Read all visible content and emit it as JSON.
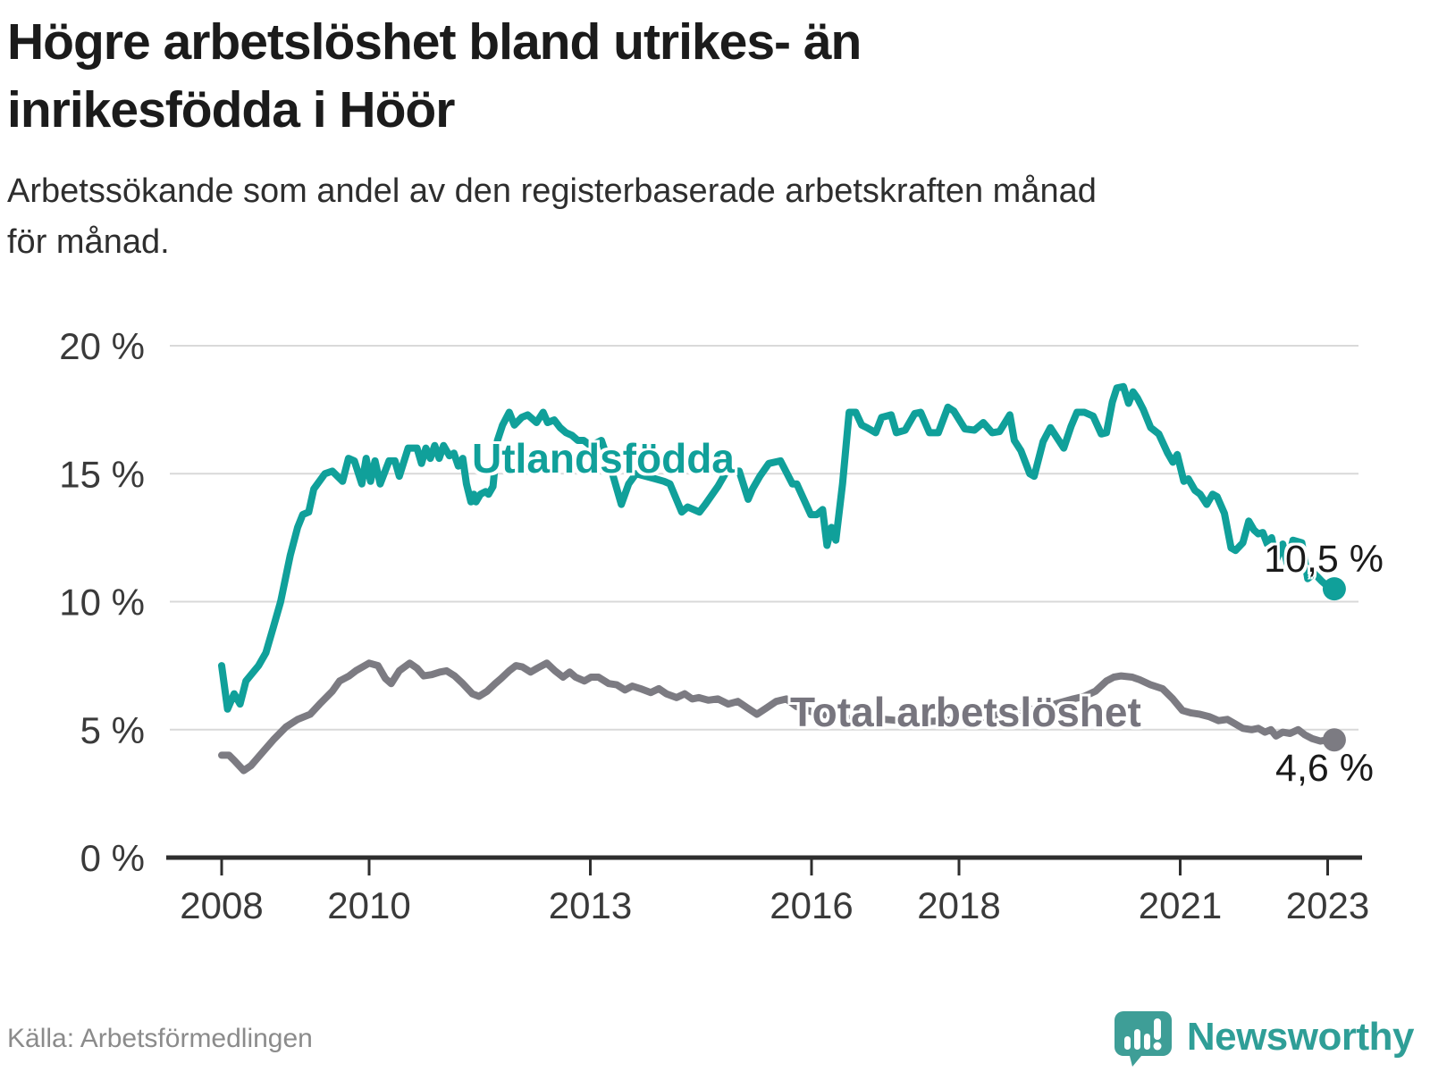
{
  "title": {
    "lines": [
      "Högre arbetslöshet bland utrikes- än",
      "inrikesfödda i Höör"
    ]
  },
  "subtitle": {
    "lines": [
      "Arbetssökande som andel av den registerbaserade arbetskraften månad",
      "för månad."
    ]
  },
  "source": "Källa: Arbetsförmedlingen",
  "branding": {
    "name": "Newsworthy",
    "logo_icon": "bar-chart-speech-bubble-icon",
    "logo_color": "#3e9e97"
  },
  "colors": {
    "foreign_line": "#10a09a",
    "total_line": "#7c7b82",
    "grid": "#d9d9d9",
    "axis": "#2e2e2e",
    "end_label_text": "#1a1a1a"
  },
  "chart_data": {
    "type": "line",
    "title": "Högre arbetslöshet bland utrikes- än inrikesfödda i Höör",
    "xlabel": "",
    "ylabel": "Arbetssökande som andel av den registerbaserade arbetskraften",
    "ylim": [
      0,
      20
    ],
    "xlim": [
      2007.3,
      2023.42
    ],
    "grid": "horizontal",
    "legend_position": "inline-labels",
    "y_ticks": [
      {
        "value": 0,
        "label": "0 %"
      },
      {
        "value": 5,
        "label": "5 %"
      },
      {
        "value": 10,
        "label": "10 %"
      },
      {
        "value": 15,
        "label": "15 %"
      },
      {
        "value": 20,
        "label": "20 %"
      }
    ],
    "x_ticks": [
      {
        "year": 2008,
        "label": "2008"
      },
      {
        "year": 2010,
        "label": "2010"
      },
      {
        "year": 2013,
        "label": "2013"
      },
      {
        "year": 2016,
        "label": "2016"
      },
      {
        "year": 2018,
        "label": "2018"
      },
      {
        "year": 2021,
        "label": "2021"
      },
      {
        "year": 2023,
        "label": "2023"
      }
    ],
    "series": [
      {
        "id": "utlandsfodda",
        "name": "Utlandsfödda",
        "color": "#10a09a",
        "end_value": 10.5,
        "end_label": "10,5 %",
        "points": [
          [
            2008.0,
            7.5
          ],
          [
            2008.08,
            5.8
          ],
          [
            2008.17,
            6.4
          ],
          [
            2008.25,
            6.0
          ],
          [
            2008.33,
            6.9
          ],
          [
            2008.5,
            7.5
          ],
          [
            2008.6,
            8.0
          ],
          [
            2008.7,
            9.0
          ],
          [
            2008.8,
            10.0
          ],
          [
            2008.93,
            11.8
          ],
          [
            2009.03,
            12.9
          ],
          [
            2009.1,
            13.4
          ],
          [
            2009.18,
            13.5
          ],
          [
            2009.25,
            14.4
          ],
          [
            2009.4,
            15.0
          ],
          [
            2009.5,
            15.1
          ],
          [
            2009.64,
            14.7
          ],
          [
            2009.72,
            15.6
          ],
          [
            2009.8,
            15.5
          ],
          [
            2009.9,
            14.6
          ],
          [
            2009.96,
            15.6
          ],
          [
            2010.02,
            14.7
          ],
          [
            2010.08,
            15.5
          ],
          [
            2010.15,
            14.6
          ],
          [
            2010.27,
            15.5
          ],
          [
            2010.35,
            15.5
          ],
          [
            2010.41,
            14.9
          ],
          [
            2010.53,
            16.0
          ],
          [
            2010.65,
            16.0
          ],
          [
            2010.71,
            15.4
          ],
          [
            2010.77,
            16.0
          ],
          [
            2010.83,
            15.6
          ],
          [
            2010.89,
            16.1
          ],
          [
            2010.95,
            15.6
          ],
          [
            2011.01,
            16.1
          ],
          [
            2011.09,
            15.7
          ],
          [
            2011.15,
            15.8
          ],
          [
            2011.21,
            15.3
          ],
          [
            2011.27,
            15.6
          ],
          [
            2011.32,
            14.6
          ],
          [
            2011.38,
            13.9
          ],
          [
            2011.42,
            14.2
          ],
          [
            2011.45,
            13.9
          ],
          [
            2011.51,
            14.2
          ],
          [
            2011.58,
            14.3
          ],
          [
            2011.62,
            14.2
          ],
          [
            2011.68,
            14.5
          ],
          [
            2011.74,
            16.3
          ],
          [
            2011.81,
            16.9
          ],
          [
            2011.9,
            17.4
          ],
          [
            2011.97,
            16.9
          ],
          [
            2012.07,
            17.2
          ],
          [
            2012.15,
            17.3
          ],
          [
            2012.27,
            17.0
          ],
          [
            2012.36,
            17.4
          ],
          [
            2012.42,
            17.0
          ],
          [
            2012.51,
            17.1
          ],
          [
            2012.59,
            16.8
          ],
          [
            2012.67,
            16.6
          ],
          [
            2012.75,
            16.5
          ],
          [
            2012.83,
            16.3
          ],
          [
            2012.91,
            16.3
          ],
          [
            2013.0,
            16.1
          ],
          [
            2013.08,
            16.2
          ],
          [
            2013.15,
            16.3
          ],
          [
            2013.28,
            15.2
          ],
          [
            2013.42,
            13.8
          ],
          [
            2013.52,
            14.6
          ],
          [
            2013.62,
            15.0
          ],
          [
            2013.75,
            14.9
          ],
          [
            2013.88,
            14.8
          ],
          [
            2014.0,
            14.7
          ],
          [
            2014.08,
            14.6
          ],
          [
            2014.24,
            13.5
          ],
          [
            2014.32,
            13.7
          ],
          [
            2014.48,
            13.5
          ],
          [
            2014.56,
            13.8
          ],
          [
            2014.73,
            14.5
          ],
          [
            2014.85,
            15.1
          ],
          [
            2015.02,
            15.1
          ],
          [
            2015.14,
            14.0
          ],
          [
            2015.2,
            14.4
          ],
          [
            2015.3,
            14.9
          ],
          [
            2015.42,
            15.4
          ],
          [
            2015.58,
            15.5
          ],
          [
            2015.74,
            14.6
          ],
          [
            2015.8,
            14.6
          ],
          [
            2015.99,
            13.4
          ],
          [
            2016.07,
            13.4
          ],
          [
            2016.15,
            13.6
          ],
          [
            2016.21,
            12.2
          ],
          [
            2016.27,
            12.9
          ],
          [
            2016.33,
            12.4
          ],
          [
            2016.42,
            14.6
          ],
          [
            2016.51,
            17.4
          ],
          [
            2016.6,
            17.4
          ],
          [
            2016.68,
            16.9
          ],
          [
            2016.75,
            16.8
          ],
          [
            2016.87,
            16.6
          ],
          [
            2016.95,
            17.2
          ],
          [
            2017.08,
            17.3
          ],
          [
            2017.15,
            16.6
          ],
          [
            2017.27,
            16.7
          ],
          [
            2017.4,
            17.35
          ],
          [
            2017.48,
            17.4
          ],
          [
            2017.6,
            16.6
          ],
          [
            2017.72,
            16.6
          ],
          [
            2017.85,
            17.6
          ],
          [
            2017.93,
            17.45
          ],
          [
            2018.08,
            16.75
          ],
          [
            2018.21,
            16.7
          ],
          [
            2018.33,
            17.0
          ],
          [
            2018.45,
            16.6
          ],
          [
            2018.55,
            16.65
          ],
          [
            2018.69,
            17.3
          ],
          [
            2018.75,
            16.3
          ],
          [
            2018.84,
            15.9
          ],
          [
            2018.96,
            15.0
          ],
          [
            2019.02,
            14.9
          ],
          [
            2019.14,
            16.25
          ],
          [
            2019.24,
            16.8
          ],
          [
            2019.33,
            16.4
          ],
          [
            2019.42,
            16.0
          ],
          [
            2019.52,
            16.85
          ],
          [
            2019.6,
            17.4
          ],
          [
            2019.7,
            17.4
          ],
          [
            2019.82,
            17.25
          ],
          [
            2019.93,
            16.55
          ],
          [
            2020.0,
            16.6
          ],
          [
            2020.08,
            17.8
          ],
          [
            2020.14,
            18.35
          ],
          [
            2020.23,
            18.4
          ],
          [
            2020.3,
            17.75
          ],
          [
            2020.36,
            18.2
          ],
          [
            2020.42,
            17.95
          ],
          [
            2020.5,
            17.5
          ],
          [
            2020.6,
            16.8
          ],
          [
            2020.71,
            16.55
          ],
          [
            2020.83,
            15.8
          ],
          [
            2020.9,
            15.45
          ],
          [
            2020.96,
            15.75
          ],
          [
            2021.05,
            14.7
          ],
          [
            2021.11,
            14.8
          ],
          [
            2021.2,
            14.35
          ],
          [
            2021.27,
            14.2
          ],
          [
            2021.36,
            13.8
          ],
          [
            2021.44,
            14.2
          ],
          [
            2021.5,
            14.1
          ],
          [
            2021.6,
            13.45
          ],
          [
            2021.69,
            12.1
          ],
          [
            2021.75,
            12.0
          ],
          [
            2021.85,
            12.3
          ],
          [
            2021.93,
            13.15
          ],
          [
            2022.0,
            12.8
          ],
          [
            2022.06,
            12.65
          ],
          [
            2022.12,
            12.7
          ],
          [
            2022.18,
            12.25
          ],
          [
            2022.24,
            12.5
          ],
          [
            2022.3,
            11.6
          ],
          [
            2022.39,
            12.25
          ],
          [
            2022.45,
            11.5
          ],
          [
            2022.53,
            12.4
          ],
          [
            2022.65,
            12.3
          ],
          [
            2022.73,
            10.9
          ],
          [
            2022.82,
            11.1
          ],
          [
            2022.92,
            10.8
          ],
          [
            2023.0,
            10.6
          ],
          [
            2023.09,
            10.5
          ]
        ]
      },
      {
        "id": "total",
        "name": "Total arbetslöshet",
        "color": "#7c7b82",
        "end_value": 4.6,
        "end_label": "4,6 %",
        "points": [
          [
            2008.0,
            4.0
          ],
          [
            2008.1,
            4.0
          ],
          [
            2008.17,
            3.8
          ],
          [
            2008.3,
            3.4
          ],
          [
            2008.4,
            3.6
          ],
          [
            2008.55,
            4.1
          ],
          [
            2008.7,
            4.6
          ],
          [
            2008.87,
            5.1
          ],
          [
            2009.03,
            5.4
          ],
          [
            2009.2,
            5.6
          ],
          [
            2009.33,
            6.0
          ],
          [
            2009.5,
            6.5
          ],
          [
            2009.6,
            6.9
          ],
          [
            2009.73,
            7.1
          ],
          [
            2009.82,
            7.3
          ],
          [
            2010.0,
            7.6
          ],
          [
            2010.12,
            7.5
          ],
          [
            2010.22,
            7.0
          ],
          [
            2010.3,
            6.8
          ],
          [
            2010.41,
            7.3
          ],
          [
            2010.55,
            7.6
          ],
          [
            2010.65,
            7.4
          ],
          [
            2010.74,
            7.1
          ],
          [
            2010.85,
            7.15
          ],
          [
            2010.96,
            7.25
          ],
          [
            2011.05,
            7.3
          ],
          [
            2011.16,
            7.1
          ],
          [
            2011.27,
            6.8
          ],
          [
            2011.4,
            6.4
          ],
          [
            2011.49,
            6.3
          ],
          [
            2011.6,
            6.5
          ],
          [
            2011.71,
            6.8
          ],
          [
            2011.79,
            7.0
          ],
          [
            2011.9,
            7.3
          ],
          [
            2011.99,
            7.5
          ],
          [
            2012.08,
            7.45
          ],
          [
            2012.19,
            7.25
          ],
          [
            2012.28,
            7.4
          ],
          [
            2012.41,
            7.6
          ],
          [
            2012.52,
            7.3
          ],
          [
            2012.63,
            7.05
          ],
          [
            2012.72,
            7.25
          ],
          [
            2012.8,
            7.05
          ],
          [
            2012.92,
            6.9
          ],
          [
            2013.01,
            7.05
          ],
          [
            2013.11,
            7.05
          ],
          [
            2013.25,
            6.8
          ],
          [
            2013.36,
            6.75
          ],
          [
            2013.47,
            6.55
          ],
          [
            2013.57,
            6.7
          ],
          [
            2013.68,
            6.6
          ],
          [
            2013.82,
            6.45
          ],
          [
            2013.93,
            6.6
          ],
          [
            2014.03,
            6.4
          ],
          [
            2014.17,
            6.25
          ],
          [
            2014.28,
            6.4
          ],
          [
            2014.38,
            6.2
          ],
          [
            2014.47,
            6.25
          ],
          [
            2014.6,
            6.15
          ],
          [
            2014.73,
            6.2
          ],
          [
            2014.87,
            6.0
          ],
          [
            2015.0,
            6.1
          ],
          [
            2015.13,
            5.85
          ],
          [
            2015.26,
            5.6
          ],
          [
            2015.39,
            5.85
          ],
          [
            2015.52,
            6.1
          ],
          [
            2015.66,
            6.2
          ],
          [
            2015.8,
            5.9
          ],
          [
            2016.0,
            5.7
          ],
          [
            2016.3,
            5.5
          ],
          [
            2016.6,
            5.4
          ],
          [
            2017.0,
            5.4
          ],
          [
            2017.4,
            5.3
          ],
          [
            2017.8,
            5.35
          ],
          [
            2018.2,
            5.45
          ],
          [
            2018.6,
            5.6
          ],
          [
            2019.0,
            5.8
          ],
          [
            2019.3,
            6.0
          ],
          [
            2019.55,
            6.2
          ],
          [
            2019.7,
            6.3
          ],
          [
            2019.85,
            6.5
          ],
          [
            2020.0,
            6.9
          ],
          [
            2020.1,
            7.05
          ],
          [
            2020.2,
            7.1
          ],
          [
            2020.35,
            7.05
          ],
          [
            2020.45,
            6.95
          ],
          [
            2020.6,
            6.75
          ],
          [
            2020.76,
            6.6
          ],
          [
            2020.9,
            6.2
          ],
          [
            2021.03,
            5.75
          ],
          [
            2021.15,
            5.65
          ],
          [
            2021.27,
            5.6
          ],
          [
            2021.4,
            5.5
          ],
          [
            2021.52,
            5.35
          ],
          [
            2021.64,
            5.4
          ],
          [
            2021.73,
            5.25
          ],
          [
            2021.85,
            5.05
          ],
          [
            2021.97,
            5.0
          ],
          [
            2022.06,
            5.05
          ],
          [
            2022.15,
            4.9
          ],
          [
            2022.23,
            5.0
          ],
          [
            2022.3,
            4.75
          ],
          [
            2022.39,
            4.9
          ],
          [
            2022.49,
            4.85
          ],
          [
            2022.6,
            5.0
          ],
          [
            2022.69,
            4.8
          ],
          [
            2022.79,
            4.65
          ],
          [
            2022.9,
            4.55
          ],
          [
            2023.0,
            4.6
          ],
          [
            2023.09,
            4.6
          ]
        ]
      }
    ]
  }
}
